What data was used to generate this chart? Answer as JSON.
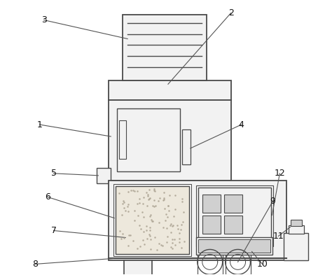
{
  "bg_color": "#ffffff",
  "line_color": "#4a4a4a",
  "fill_light": "#f2f2f2",
  "fill_medium": "#d0d0d0",
  "fill_texture": "#ede8dc",
  "figsize": [
    4.44,
    3.93
  ],
  "dpi": 100,
  "label_fs": 9
}
